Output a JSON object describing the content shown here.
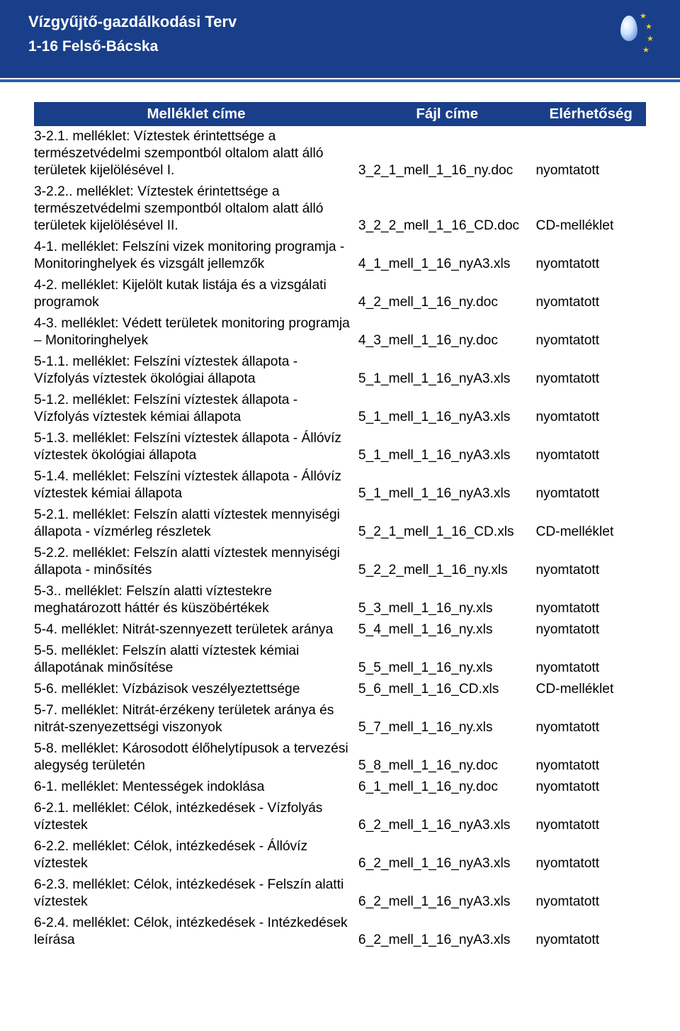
{
  "colors": {
    "header_bg": "#1a3f8a",
    "accent": "#2c5faa",
    "page_bg": "#ffffff",
    "text": "#000000",
    "header_text": "#ffffff",
    "star": "#f4c822"
  },
  "typography": {
    "body_font": "Arial",
    "body_size_pt": 14,
    "header_title_size_pt": 16,
    "table_header_size_pt": 15
  },
  "header": {
    "app_title": "Vízgyűjtő-gazdálkodási Terv",
    "subtitle": "1-16 Felső-Bácska"
  },
  "table": {
    "type": "table",
    "columns": [
      "Melléklet címe",
      "Fájl címe",
      "Elérhetőség"
    ],
    "column_align": [
      "left",
      "left",
      "left"
    ],
    "rows": [
      [
        "3-2.1. melléklet: Víztestek érintettsége a természetvédelmi szempontból oltalom alatt álló területek kijelölésével I.",
        "3_2_1_mell_1_16_ny.doc",
        "nyomtatott"
      ],
      [
        "3-2.2.. melléklet: Víztestek érintettsége a természetvédelmi szempontból oltalom alatt álló területek kijelölésével II.",
        "3_2_2_mell_1_16_CD.doc",
        "CD-melléklet"
      ],
      [
        "4-1. melléklet: Felszíni vizek monitoring programja - Monitoringhelyek és vizsgált jellemzők",
        "4_1_mell_1_16_nyA3.xls",
        "nyomtatott"
      ],
      [
        "4-2. melléklet: Kijelölt kutak listája és a vizsgálati programok",
        "4_2_mell_1_16_ny.doc",
        "nyomtatott"
      ],
      [
        "4-3. melléklet: Védett területek monitoring programja – Monitoringhelyek",
        "4_3_mell_1_16_ny.doc",
        "nyomtatott"
      ],
      [
        "5-1.1. melléklet: Felszíni víztestek állapota  - Vízfolyás víztestek ökológiai állapota",
        "5_1_mell_1_16_nyA3.xls",
        "nyomtatott"
      ],
      [
        "5-1.2. melléklet: Felszíni víztestek állapota  - Vízfolyás víztestek kémiai állapota",
        "5_1_mell_1_16_nyA3.xls",
        "nyomtatott"
      ],
      [
        "5-1.3. melléklet: Felszíni víztestek állapota  - Állóvíz víztestek ökológiai állapota",
        "5_1_mell_1_16_nyA3.xls",
        "nyomtatott"
      ],
      [
        "5-1.4. melléklet: Felszíni víztestek állapota  - Állóvíz víztestek kémiai állapota",
        "5_1_mell_1_16_nyA3.xls",
        "nyomtatott"
      ],
      [
        "5-2.1. melléklet:  Felszín alatti víztestek mennyiségi állapota - vízmérleg részletek",
        "5_2_1_mell_1_16_CD.xls",
        "CD-melléklet"
      ],
      [
        "5-2.2. melléklet: Felszín alatti víztestek mennyiségi állapota - minősítés",
        "5_2_2_mell_1_16_ny.xls",
        "nyomtatott"
      ],
      [
        "5-3.. melléklet: Felszín alatti víztestekre meghatározott háttér és küszöbértékek",
        "5_3_mell_1_16_ny.xls",
        "nyomtatott"
      ],
      [
        "5-4. melléklet: Nitrát-szennyezett területek aránya",
        "5_4_mell_1_16_ny.xls",
        "nyomtatott"
      ],
      [
        "5-5. melléklet: Felszín alatti víztestek kémiai állapotának minősítése",
        "5_5_mell_1_16_ny.xls",
        "nyomtatott"
      ],
      [
        "5-6. melléklet: Vízbázisok veszélyeztettsége",
        "5_6_mell_1_16_CD.xls",
        "CD-melléklet"
      ],
      [
        "5-7. melléklet: Nitrát-érzékeny területek aránya és nitrát-szenyezettségi viszonyok",
        "5_7_mell_1_16_ny.xls",
        "nyomtatott"
      ],
      [
        "5-8. melléklet: Károsodott élőhelytípusok a tervezési alegység területén",
        "5_8_mell_1_16_ny.doc",
        "nyomtatott"
      ],
      [
        "6-1. melléklet: Mentességek indoklása",
        "6_1_mell_1_16_ny.doc",
        "nyomtatott"
      ],
      [
        "6-2.1. melléklet: Célok, intézkedések - Vízfolyás víztestek",
        "6_2_mell_1_16_nyA3.xls",
        "nyomtatott"
      ],
      [
        "6-2.2. melléklet: Célok, intézkedések - Állóvíz víztestek",
        "6_2_mell_1_16_nyA3.xls",
        "nyomtatott"
      ],
      [
        "6-2.3. melléklet: Célok, intézkedések - Felszín alatti víztestek",
        "6_2_mell_1_16_nyA3.xls",
        "nyomtatott"
      ],
      [
        "6-2.4. melléklet: Célok, intézkedések - Intézkedések leírása",
        "6_2_mell_1_16_nyA3.xls",
        "nyomtatott"
      ]
    ]
  }
}
